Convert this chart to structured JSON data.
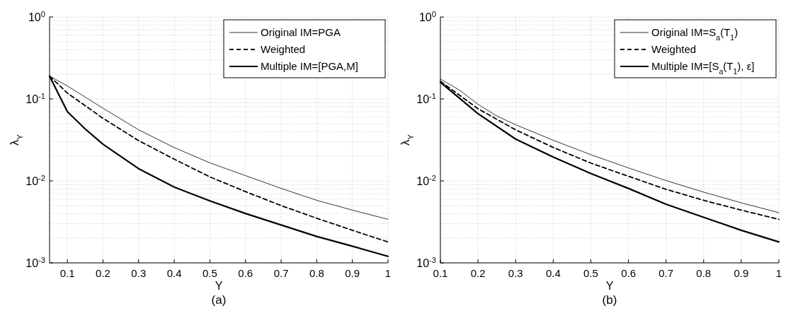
{
  "chart_data": [
    {
      "type": "line",
      "title": "(a)",
      "xlabel": "Y",
      "ylabel": "λ$_{Y}$",
      "log": "y",
      "grid": true,
      "legend": "top right",
      "xlim": [
        0.05,
        1
      ],
      "xticks": [
        0.1,
        0.2,
        0.3,
        0.4,
        0.5,
        0.6,
        0.7,
        0.8,
        0.9,
        1
      ],
      "ylim": [
        0.001,
        1
      ],
      "yticks": [
        {
          "value": 0.001,
          "label": "10$^{-3}$"
        },
        {
          "value": 0.01,
          "label": "10$^{-2}$"
        },
        {
          "value": 0.1,
          "label": "10$^{-1}$"
        },
        {
          "value": 1,
          "label": "10$^{0}$"
        }
      ],
      "x": [
        0.05,
        0.1,
        0.2,
        0.3,
        0.4,
        0.5,
        0.6,
        0.7,
        0.8,
        0.9,
        1
      ],
      "series": [
        {
          "name": "Original IM=PGA",
          "color": "#000000",
          "line_style": "solid",
          "values": [
            0.19,
            0.144,
            0.077,
            0.042,
            0.0255,
            0.0166,
            0.0116,
            0.0081,
            0.0058,
            0.0044,
            0.0034
          ]
        },
        {
          "name": "Weighted",
          "color": "#000000",
          "line_style": "dashed",
          "values": [
            0.19,
            0.118,
            0.058,
            0.031,
            0.0184,
            0.0112,
            0.0074,
            0.005,
            0.0035,
            0.0025,
            0.0018
          ]
        },
        {
          "name": "Multiple IM=[PGA,M]",
          "color": "#000000",
          "line_style": "solid",
          "x": [
            0.05,
            0.1,
            0.15,
            0.2,
            0.3,
            0.4,
            0.5,
            0.6,
            0.7,
            0.8,
            0.9,
            1
          ],
          "values": [
            0.19,
            0.07,
            0.043,
            0.028,
            0.0141,
            0.0084,
            0.0057,
            0.004,
            0.0029,
            0.0021,
            0.0016,
            0.0012
          ]
        }
      ]
    },
    {
      "type": "line",
      "title": "(b)",
      "xlabel": "Y",
      "ylabel": "λ$_{Y}$",
      "log": "y",
      "grid": true,
      "legend": "top right",
      "xlim": [
        0.1,
        1
      ],
      "xticks": [
        0.1,
        0.2,
        0.3,
        0.4,
        0.5,
        0.6,
        0.7,
        0.8,
        0.9,
        1
      ],
      "ylim": [
        0.001,
        1
      ],
      "yticks": [
        {
          "value": 0.001,
          "label": "10$^{-3}$"
        },
        {
          "value": 0.01,
          "label": "10$^{-2}$"
        },
        {
          "value": 0.1,
          "label": "10$^{-1}$"
        },
        {
          "value": 1,
          "label": "10$^{0}$"
        }
      ],
      "x": [
        0.1,
        0.2,
        0.3,
        0.4,
        0.5,
        0.6,
        0.7,
        0.8,
        0.9,
        1
      ],
      "series": [
        {
          "name": "Original IM=S$_{a}$(T$_{1}$)",
          "color": "#000000",
          "line_style": "solid",
          "x": [
            0.1,
            0.15,
            0.2,
            0.25,
            0.3,
            0.4,
            0.5,
            0.6,
            0.7,
            0.8,
            0.9,
            1
          ],
          "values": [
            0.175,
            0.129,
            0.086,
            0.062,
            0.0485,
            0.0313,
            0.0209,
            0.0144,
            0.0101,
            0.0073,
            0.0054,
            0.0041
          ]
        },
        {
          "name": "Weighted",
          "color": "#000000",
          "line_style": "dashed",
          "values": [
            0.164,
            0.076,
            0.042,
            0.0256,
            0.0165,
            0.0114,
            0.0079,
            0.0058,
            0.0044,
            0.0034
          ]
        },
        {
          "name": "Multiple IM=[S$_{a}$(T$_{1}$), ε]",
          "color": "#000000",
          "line_style": "solid",
          "values": [
            0.16,
            0.066,
            0.0324,
            0.0195,
            0.0123,
            0.0081,
            0.0052,
            0.0036,
            0.0025,
            0.0018
          ]
        }
      ]
    }
  ]
}
